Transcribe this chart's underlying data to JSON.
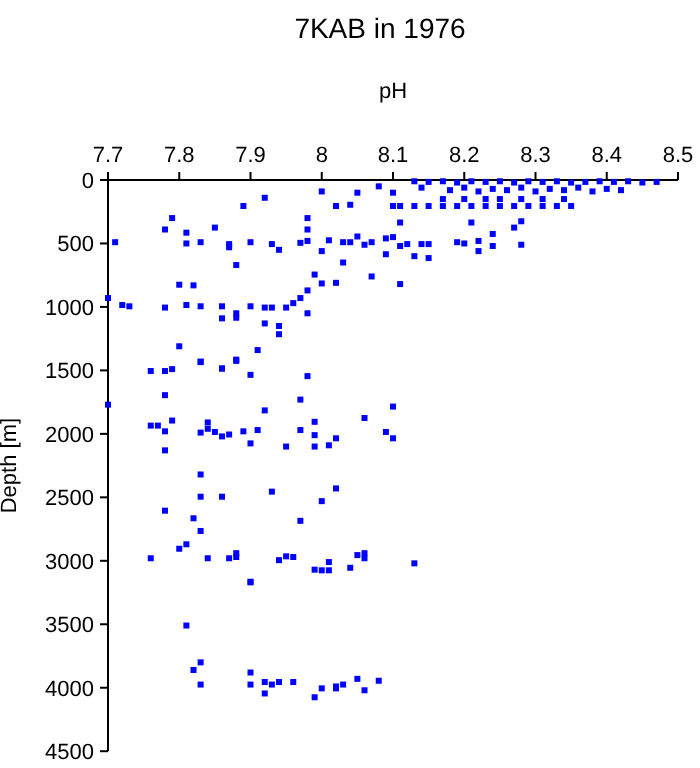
{
  "chart_data": {
    "type": "scatter",
    "title": "7KAB in 1976",
    "xlabel": "pH",
    "ylabel": "Depth [m]",
    "marker": "square",
    "grid": false,
    "xlim": [
      7.7,
      8.5
    ],
    "xticks": [
      7.7,
      7.8,
      7.9,
      8,
      8.1,
      8.2,
      8.3,
      8.4,
      8.5
    ],
    "ylim": [
      4500,
      0
    ],
    "yticks": [
      0,
      500,
      1000,
      1500,
      2000,
      2500,
      3000,
      3500,
      4000,
      4500
    ],
    "series": [
      {
        "color": "#0000ff",
        "x": [
          8.13,
          8.15,
          8.17,
          8.19,
          8.21,
          8.23,
          8.25,
          8.27,
          8.29,
          8.31,
          8.33,
          8.35,
          8.37,
          8.39,
          8.41,
          8.43,
          8.45,
          8.47,
          8.14,
          8.18,
          8.2,
          8.22,
          8.24,
          8.26,
          8.28,
          8.3,
          8.32,
          8.34,
          8.36,
          8.38,
          8.4,
          8.42,
          8.17,
          8.2,
          8.23,
          8.25,
          8.28,
          8.31,
          8.34,
          8.13,
          8.15,
          8.17,
          8.19,
          8.21,
          8.23,
          8.25,
          8.27,
          8.29,
          8.31,
          8.33,
          8.35,
          8.1,
          8.08,
          8.05,
          8.0,
          8.04,
          8.02,
          8.1,
          8.11,
          7.89,
          7.92,
          7.79,
          7.78,
          7.81,
          7.85,
          7.98,
          7.98,
          7.71,
          7.81,
          7.83,
          7.87,
          7.9,
          7.93,
          7.94,
          7.97,
          7.98,
          8.0,
          8.01,
          8.03,
          8.04,
          8.05,
          8.06,
          8.07,
          8.09,
          8.1,
          8.09,
          8.11,
          8.11,
          8.12,
          8.13,
          8.14,
          8.15,
          8.15,
          8.19,
          8.2,
          8.21,
          8.22,
          8.22,
          8.24,
          8.24,
          8.27,
          8.28,
          8.28,
          8.03,
          8.07,
          8.11,
          7.99,
          8.02,
          8.0,
          7.98,
          7.97,
          7.96,
          7.95,
          7.93,
          7.92,
          7.9,
          7.98,
          7.88,
          7.87,
          7.8,
          7.82,
          7.7,
          7.72,
          7.73,
          7.78,
          7.81,
          7.83,
          7.86,
          7.86,
          7.88,
          7.88,
          7.92,
          7.94,
          7.94,
          7.8,
          7.83,
          7.88,
          7.91,
          7.86,
          7.76,
          7.78,
          7.9,
          7.98,
          7.79,
          7.83,
          7.86,
          7.88,
          7.78,
          7.7,
          7.92,
          7.97,
          8.1,
          8.06,
          7.79,
          7.76,
          7.77,
          7.78,
          7.83,
          7.84,
          7.84,
          7.85,
          7.86,
          7.87,
          7.89,
          7.91,
          7.9,
          7.95,
          7.97,
          7.99,
          7.99,
          7.99,
          8.01,
          8.02,
          8.09,
          8.1,
          7.78,
          7.83,
          7.83,
          7.86,
          7.93,
          8.02,
          8.0,
          7.78,
          7.82,
          7.97,
          7.83,
          7.81,
          7.8,
          7.76,
          7.84,
          7.87,
          7.88,
          7.88,
          7.94,
          7.95,
          7.96,
          7.99,
          8.0,
          8.01,
          8.01,
          8.04,
          8.05,
          8.06,
          8.06,
          8.13,
          7.9,
          7.81,
          7.82,
          7.83,
          7.83,
          7.9,
          7.9,
          7.9,
          7.92,
          7.92,
          7.93,
          7.94,
          7.96,
          7.99,
          8.0,
          8.02,
          8.02,
          8.03,
          8.05,
          8.06,
          8.08
        ],
        "values": [
          10,
          15,
          10,
          20,
          10,
          15,
          10,
          20,
          10,
          15,
          10,
          20,
          15,
          10,
          15,
          10,
          20,
          15,
          60,
          80,
          60,
          90,
          70,
          80,
          60,
          90,
          70,
          80,
          60,
          90,
          70,
          80,
          150,
          150,
          150,
          150,
          150,
          150,
          150,
          205,
          205,
          205,
          205,
          205,
          205,
          205,
          205,
          205,
          205,
          205,
          205,
          100,
          50,
          100,
          90,
          195,
          205,
          205,
          205,
          205,
          140,
          300,
          390,
          415,
          375,
          300,
          390,
          490,
          500,
          490,
          505,
          490,
          505,
          550,
          495,
          480,
          560,
          475,
          490,
          490,
          445,
          510,
          490,
          460,
          450,
          585,
          520,
          335,
          505,
          600,
          505,
          505,
          615,
          490,
          500,
          335,
          480,
          560,
          425,
          520,
          375,
          325,
          510,
          650,
          760,
          820,
          745,
          810,
          815,
          870,
          930,
          970,
          1005,
          1005,
          1005,
          995,
          1050,
          670,
          530,
          825,
          830,
          930,
          985,
          995,
          1005,
          985,
          995,
          995,
          1090,
          1050,
          1085,
          1130,
          1150,
          1215,
          1310,
          1430,
          1415,
          1340,
          1485,
          1505,
          1505,
          1535,
          1545,
          1490,
          1435,
          1485,
          1425,
          1695,
          1770,
          1815,
          1730,
          1785,
          1875,
          1895,
          1935,
          1935,
          1980,
          1990,
          1910,
          1960,
          1985,
          2020,
          2005,
          1980,
          1970,
          2075,
          2100,
          1970,
          1905,
          2010,
          2100,
          2090,
          2035,
          1985,
          2035,
          2130,
          2320,
          2495,
          2495,
          2455,
          2430,
          2530,
          2605,
          2665,
          2685,
          2765,
          2870,
          2905,
          2980,
          2980,
          2980,
          2940,
          2970,
          2995,
          2965,
          2970,
          3070,
          3075,
          3010,
          3075,
          3055,
          2955,
          2940,
          2980,
          3020,
          3165,
          3510,
          3860,
          3800,
          3975,
          3170,
          3880,
          3975,
          3955,
          4045,
          3975,
          3955,
          3955,
          4075,
          4005,
          3990,
          4005,
          3975,
          3930,
          4020,
          3945
        ]
      }
    ]
  }
}
